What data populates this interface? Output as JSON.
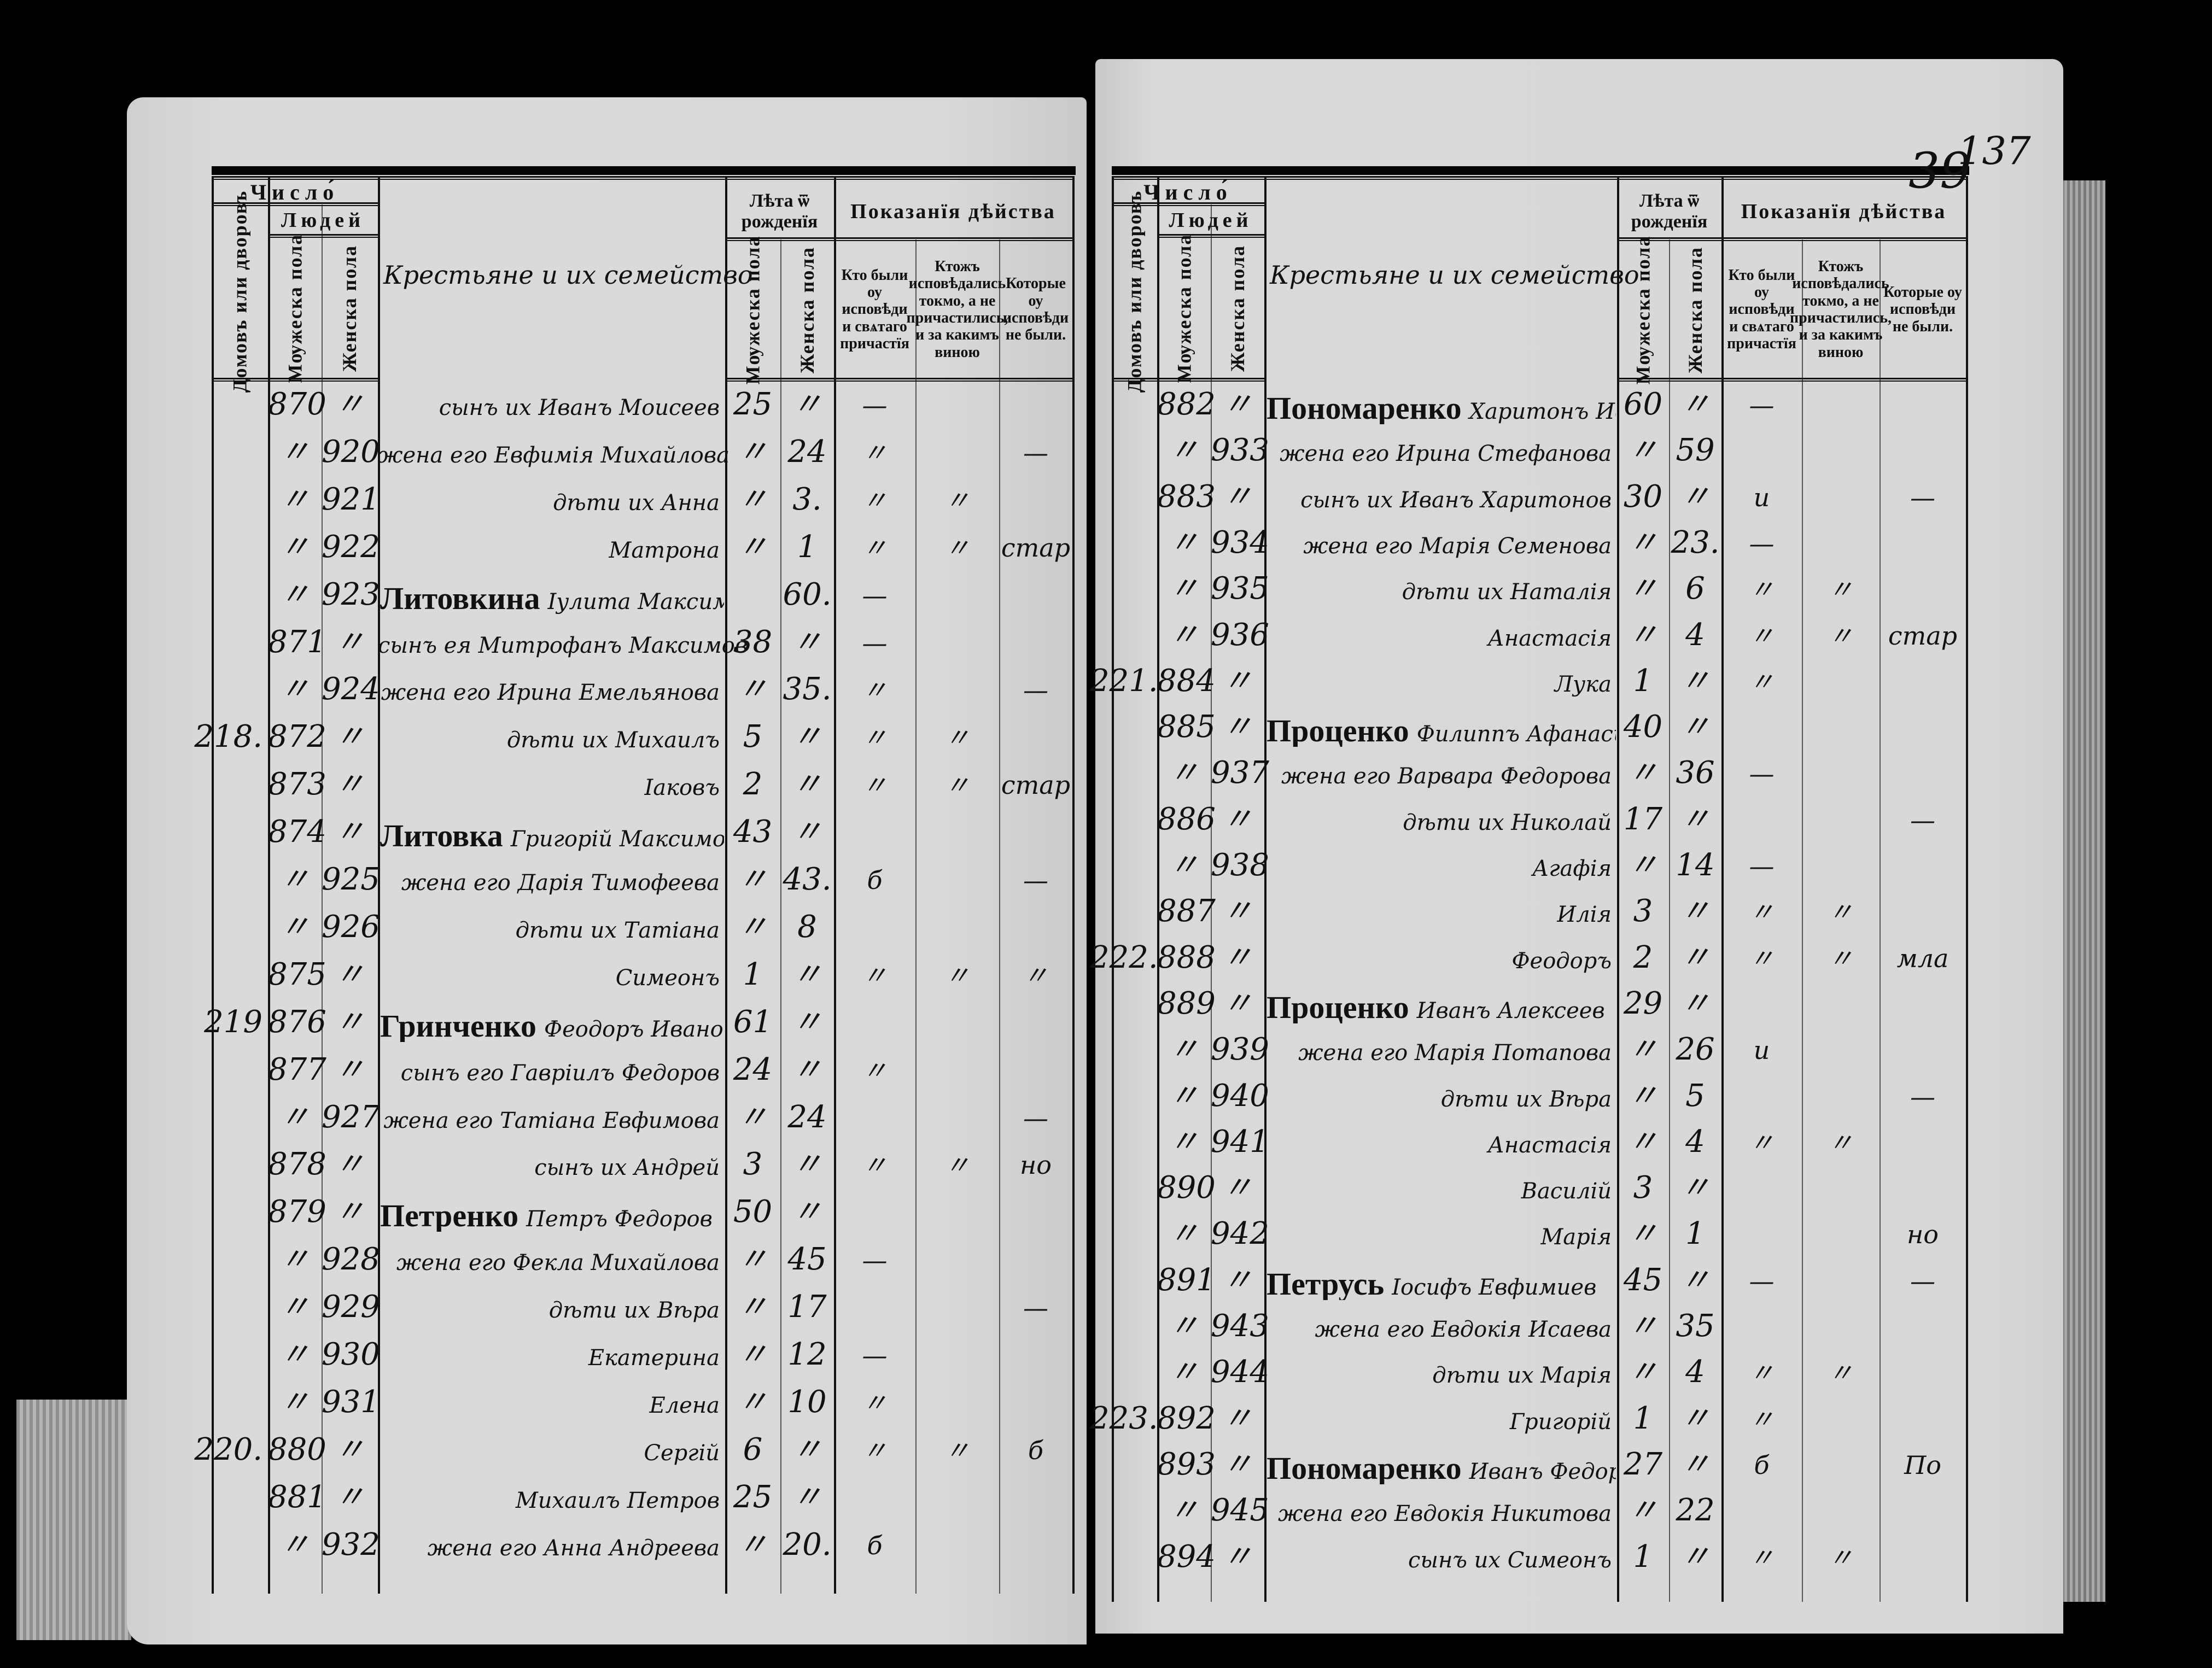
{
  "page_numbers": {
    "stamp": "137",
    "folio": "39"
  },
  "header": {
    "chislo": "Число́",
    "lyudey": "Людей",
    "domov": "Домовъ или дворовъ",
    "muzh": "Мѹжеска пола",
    "zhen": "Женска пола",
    "name_col": "Крестьяне и их семейство",
    "leta": "Лѣта ѿ рожденїя",
    "pokazaniya": "Показанїя дѣйства",
    "sub_confessed_communed": "Кто были оу исповѣди и свѧтаго причастїя",
    "sub_confessed_only": "Ктожъ исповѣдались токмо, а не причастились, и за какимъ виною",
    "sub_not_confessed": "Которые оу исповѣди не были."
  },
  "left_page": {
    "rows": [
      {
        "dom": "",
        "m": "870",
        "f": "〃",
        "surname": "",
        "name": "сынъ их Иванъ Моисеев",
        "am": "25",
        "af": "〃",
        "marks": [
          "—",
          "",
          ""
        ]
      },
      {
        "dom": "",
        "m": "〃",
        "f": "920",
        "surname": "",
        "name": "жена его Евфимія Михайлова",
        "am": "〃",
        "af": "24",
        "marks": [
          "〃",
          "",
          "—"
        ]
      },
      {
        "dom": "",
        "m": "〃",
        "f": "921",
        "surname": "",
        "name": "дѣти их Анна",
        "am": "〃",
        "af": "3.",
        "marks": [
          "〃",
          "〃",
          ""
        ]
      },
      {
        "dom": "",
        "m": "〃",
        "f": "922",
        "surname": "",
        "name": "Матрона",
        "am": "〃",
        "af": "1",
        "marks": [
          "〃",
          "〃",
          "стар"
        ]
      },
      {
        "dom": "",
        "m": "〃",
        "f": "923",
        "surname": "Литовкина",
        "name": "Іулита Максимова вдова",
        "am": "",
        "af": "60.",
        "marks": [
          "—",
          "",
          ""
        ]
      },
      {
        "dom": "",
        "m": "871",
        "f": "〃",
        "surname": "",
        "name": "сынъ ея Митрофанъ Максимов",
        "am": "38",
        "af": "〃",
        "marks": [
          "—",
          "",
          ""
        ]
      },
      {
        "dom": "",
        "m": "〃",
        "f": "924",
        "surname": "",
        "name": "жена его Ирина Емельянова",
        "am": "〃",
        "af": "35.",
        "marks": [
          "〃",
          "",
          "—"
        ]
      },
      {
        "dom": "218.",
        "m": "872",
        "f": "〃",
        "surname": "",
        "name": "дѣти их Михаилъ",
        "am": "5",
        "af": "〃",
        "marks": [
          "〃",
          "〃",
          ""
        ]
      },
      {
        "dom": "",
        "m": "873",
        "f": "〃",
        "surname": "",
        "name": "Іаковъ",
        "am": "2",
        "af": "〃",
        "marks": [
          "〃",
          "〃",
          "стар"
        ]
      },
      {
        "dom": "",
        "m": "874",
        "f": "〃",
        "surname": "Литовка",
        "name": "Григорій Максимов",
        "am": "43",
        "af": "〃",
        "marks": [
          "",
          "",
          ""
        ]
      },
      {
        "dom": "",
        "m": "〃",
        "f": "925",
        "surname": "",
        "name": "жена его Дарія Тимофеева",
        "am": "〃",
        "af": "43.",
        "marks": [
          "б",
          "",
          "—"
        ]
      },
      {
        "dom": "",
        "m": "〃",
        "f": "926",
        "surname": "",
        "name": "дѣти их Татіана",
        "am": "〃",
        "af": "8",
        "marks": [
          "",
          "",
          ""
        ]
      },
      {
        "dom": "",
        "m": "875",
        "f": "〃",
        "surname": "",
        "name": "Симеонъ",
        "am": "1",
        "af": "〃",
        "marks": [
          "〃",
          "〃",
          "〃"
        ]
      },
      {
        "dom": "219",
        "m": "876",
        "f": "〃",
        "surname": "Гринченко",
        "name": "Феодоръ Иванов вдов",
        "am": "61",
        "af": "〃",
        "marks": [
          "",
          "",
          ""
        ]
      },
      {
        "dom": "",
        "m": "877",
        "f": "〃",
        "surname": "",
        "name": "сынъ его Гавріилъ Федоров",
        "am": "24",
        "af": "〃",
        "marks": [
          "〃",
          "",
          ""
        ]
      },
      {
        "dom": "",
        "m": "〃",
        "f": "927",
        "surname": "",
        "name": "жена его Татіана Евфимова",
        "am": "〃",
        "af": "24",
        "marks": [
          "",
          "",
          "—"
        ]
      },
      {
        "dom": "",
        "m": "878",
        "f": "〃",
        "surname": "",
        "name": "сынъ их Андрей",
        "am": "3",
        "af": "〃",
        "marks": [
          "〃",
          "〃",
          "но"
        ]
      },
      {
        "dom": "",
        "m": "879",
        "f": "〃",
        "surname": "Петренко",
        "name": "Петръ Федоров",
        "am": "50",
        "af": "〃",
        "marks": [
          "",
          "",
          ""
        ]
      },
      {
        "dom": "",
        "m": "〃",
        "f": "928",
        "surname": "",
        "name": "жена его Фекла Михайлова",
        "am": "〃",
        "af": "45",
        "marks": [
          "—",
          "",
          ""
        ]
      },
      {
        "dom": "",
        "m": "〃",
        "f": "929",
        "surname": "",
        "name": "дѣти их Вѣра",
        "am": "〃",
        "af": "17",
        "marks": [
          "",
          "",
          "—"
        ]
      },
      {
        "dom": "",
        "m": "〃",
        "f": "930",
        "surname": "",
        "name": "Екатерина",
        "am": "〃",
        "af": "12",
        "marks": [
          "—",
          "",
          ""
        ]
      },
      {
        "dom": "",
        "m": "〃",
        "f": "931",
        "surname": "",
        "name": "Елена",
        "am": "〃",
        "af": "10",
        "marks": [
          "〃",
          "",
          ""
        ]
      },
      {
        "dom": "220.",
        "m": "880",
        "f": "〃",
        "surname": "",
        "name": "Сергій",
        "am": "6",
        "af": "〃",
        "marks": [
          "〃",
          "〃",
          "б"
        ]
      },
      {
        "dom": "",
        "m": "881",
        "f": "〃",
        "surname": "",
        "name": "Михаилъ Петров",
        "am": "25",
        "af": "〃",
        "marks": [
          "",
          "",
          ""
        ]
      },
      {
        "dom": "",
        "m": "〃",
        "f": "932",
        "surname": "",
        "name": "жена его Анна Андреева",
        "am": "〃",
        "af": "20.",
        "marks": [
          "б",
          "",
          ""
        ]
      }
    ]
  },
  "right_page": {
    "rows": [
      {
        "dom": "",
        "m": "882",
        "f": "〃",
        "surname": "Пономаренко",
        "name": "Харитонъ Иванов",
        "am": "60",
        "af": "〃",
        "marks": [
          "—",
          "",
          ""
        ]
      },
      {
        "dom": "",
        "m": "〃",
        "f": "933",
        "surname": "",
        "name": "жена его Ирина Стефанова",
        "am": "〃",
        "af": "59",
        "marks": [
          "",
          "",
          ""
        ]
      },
      {
        "dom": "",
        "m": "883",
        "f": "〃",
        "surname": "",
        "name": "сынъ их Иванъ Харитонов",
        "am": "30",
        "af": "〃",
        "marks": [
          "и",
          "",
          "—"
        ]
      },
      {
        "dom": "",
        "m": "〃",
        "f": "934",
        "surname": "",
        "name": "жена его Марія Семенова",
        "am": "〃",
        "af": "23.",
        "marks": [
          "—",
          "",
          ""
        ]
      },
      {
        "dom": "",
        "m": "〃",
        "f": "935",
        "surname": "",
        "name": "дѣти их Наталія",
        "am": "〃",
        "af": "6",
        "marks": [
          "〃",
          "〃",
          ""
        ]
      },
      {
        "dom": "",
        "m": "〃",
        "f": "936",
        "surname": "",
        "name": "Анастасія",
        "am": "〃",
        "af": "4",
        "marks": [
          "〃",
          "〃",
          "стар"
        ]
      },
      {
        "dom": "221.",
        "m": "884",
        "f": "〃",
        "surname": "",
        "name": "Лука",
        "am": "1",
        "af": "〃",
        "marks": [
          "〃",
          "",
          ""
        ]
      },
      {
        "dom": "",
        "m": "885",
        "f": "〃",
        "surname": "Проценко",
        "name": "Филиппъ Афанасьев",
        "am": "40",
        "af": "〃",
        "marks": [
          "",
          "",
          ""
        ]
      },
      {
        "dom": "",
        "m": "〃",
        "f": "937",
        "surname": "",
        "name": "жена его Варвара Федорова",
        "am": "〃",
        "af": "36",
        "marks": [
          "—",
          "",
          ""
        ]
      },
      {
        "dom": "",
        "m": "886",
        "f": "〃",
        "surname": "",
        "name": "дѣти их Николай",
        "am": "17",
        "af": "〃",
        "marks": [
          "",
          "",
          "—"
        ]
      },
      {
        "dom": "",
        "m": "〃",
        "f": "938",
        "surname": "",
        "name": "Агафія",
        "am": "〃",
        "af": "14",
        "marks": [
          "—",
          "",
          ""
        ]
      },
      {
        "dom": "",
        "m": "887",
        "f": "〃",
        "surname": "",
        "name": "Илія",
        "am": "3",
        "af": "〃",
        "marks": [
          "〃",
          "〃",
          ""
        ]
      },
      {
        "dom": "222.",
        "m": "888",
        "f": "〃",
        "surname": "",
        "name": "Феодоръ",
        "am": "2",
        "af": "〃",
        "marks": [
          "〃",
          "〃",
          "мла"
        ]
      },
      {
        "dom": "",
        "m": "889",
        "f": "〃",
        "surname": "Проценко",
        "name": "Иванъ Алексеев",
        "am": "29",
        "af": "〃",
        "marks": [
          "",
          "",
          ""
        ]
      },
      {
        "dom": "",
        "m": "〃",
        "f": "939",
        "surname": "",
        "name": "жена его Марія Потапова",
        "am": "〃",
        "af": "26",
        "marks": [
          "и",
          "",
          ""
        ]
      },
      {
        "dom": "",
        "m": "〃",
        "f": "940",
        "surname": "",
        "name": "дѣти их Вѣра",
        "am": "〃",
        "af": "5",
        "marks": [
          "",
          "",
          "—"
        ]
      },
      {
        "dom": "",
        "m": "〃",
        "f": "941",
        "surname": "",
        "name": "Анастасія",
        "am": "〃",
        "af": "4",
        "marks": [
          "〃",
          "〃",
          ""
        ]
      },
      {
        "dom": "",
        "m": "890",
        "f": "〃",
        "surname": "",
        "name": "Василій",
        "am": "3",
        "af": "〃",
        "marks": [
          "",
          "",
          ""
        ]
      },
      {
        "dom": "",
        "m": "〃",
        "f": "942",
        "surname": "",
        "name": "Марія",
        "am": "〃",
        "af": "1",
        "marks": [
          "",
          "",
          "но"
        ]
      },
      {
        "dom": "",
        "m": "891",
        "f": "〃",
        "surname": "Петрусь",
        "name": "Іосифъ Евфимиев",
        "am": "45",
        "af": "〃",
        "marks": [
          "—",
          "",
          "—"
        ]
      },
      {
        "dom": "",
        "m": "〃",
        "f": "943",
        "surname": "",
        "name": "жена его Евдокія Исаева",
        "am": "〃",
        "af": "35",
        "marks": [
          "",
          "",
          ""
        ]
      },
      {
        "dom": "",
        "m": "〃",
        "f": "944",
        "surname": "",
        "name": "дѣти их Марія",
        "am": "〃",
        "af": "4",
        "marks": [
          "〃",
          "〃",
          ""
        ]
      },
      {
        "dom": "223.",
        "m": "892",
        "f": "〃",
        "surname": "",
        "name": "Григорій",
        "am": "1",
        "af": "〃",
        "marks": [
          "〃",
          "",
          ""
        ]
      },
      {
        "dom": "",
        "m": "893",
        "f": "〃",
        "surname": "Пономаренко",
        "name": "Иванъ Федоров",
        "am": "27",
        "af": "〃",
        "marks": [
          "б",
          "",
          "По"
        ]
      },
      {
        "dom": "",
        "m": "〃",
        "f": "945",
        "surname": "",
        "name": "жена его Евдокія Никитова",
        "am": "〃",
        "af": "22",
        "marks": [
          "",
          "",
          ""
        ]
      },
      {
        "dom": "",
        "m": "894",
        "f": "〃",
        "surname": "",
        "name": "сынъ их Симеонъ",
        "am": "1",
        "af": "〃",
        "marks": [
          "〃",
          "〃",
          ""
        ]
      }
    ]
  }
}
